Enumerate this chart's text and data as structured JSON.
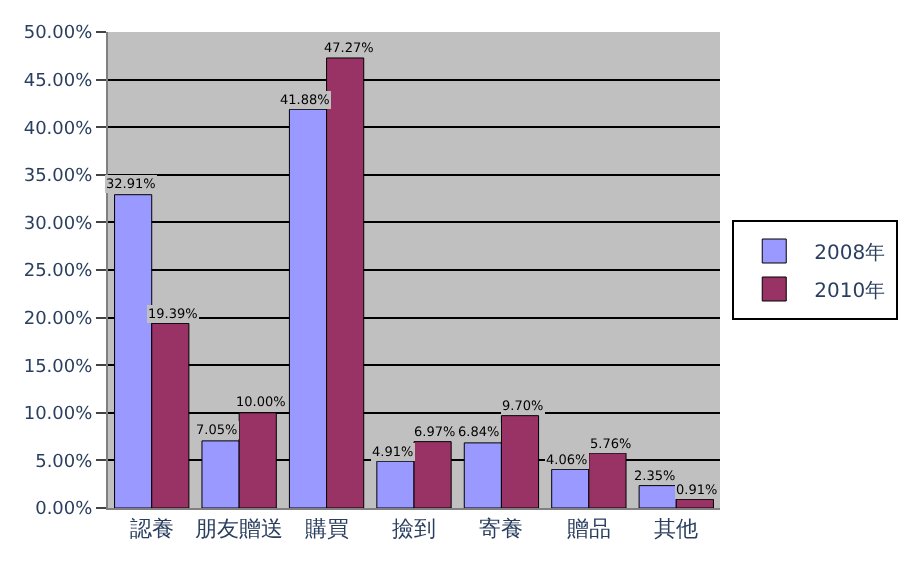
{
  "chart_data": {
    "type": "bar",
    "categories": [
      "認養",
      "朋友贈送",
      "購買",
      "撿到",
      "寄養",
      "贈品",
      "其他"
    ],
    "series": [
      {
        "name": "2008年",
        "color": "#9999ff",
        "values": [
          32.91,
          7.05,
          41.88,
          4.91,
          6.84,
          4.06,
          2.35
        ],
        "value_labels": [
          "32.91%",
          "7.05%",
          "41.88%",
          "4.91%",
          "6.84%",
          "4.06%",
          "2.35%"
        ]
      },
      {
        "name": "2010年",
        "color": "#993366",
        "values": [
          19.39,
          10.0,
          47.27,
          6.97,
          9.7,
          5.76,
          0.91
        ],
        "value_labels": [
          "19.39%",
          "10.00%",
          "47.27%",
          "6.97%",
          "9.70%",
          "5.76%",
          "0.91%"
        ]
      }
    ],
    "ylim": [
      0,
      50
    ],
    "yticks": [
      {
        "value": 0,
        "label": "0.00%"
      },
      {
        "value": 5,
        "label": "5.00%"
      },
      {
        "value": 10,
        "label": "10.00%"
      },
      {
        "value": 15,
        "label": "15.00%"
      },
      {
        "value": 20,
        "label": "20.00%"
      },
      {
        "value": 25,
        "label": "25.00%"
      },
      {
        "value": 30,
        "label": "30.00%"
      },
      {
        "value": 35,
        "label": "35.00%"
      },
      {
        "value": 40,
        "label": "40.00%"
      },
      {
        "value": 45,
        "label": "45.00%"
      },
      {
        "value": 50,
        "label": "50.00%"
      }
    ],
    "grid": "y",
    "legend": "right"
  }
}
